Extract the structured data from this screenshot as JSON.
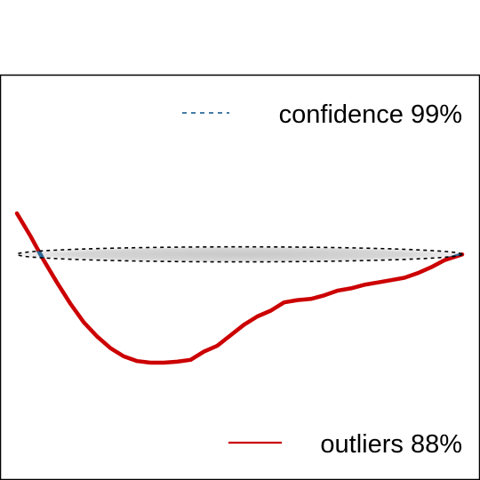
{
  "chart_data": {
    "type": "line",
    "title": "",
    "xlabel": "",
    "ylabel": "",
    "grid": false,
    "axes_visible": false,
    "x_range": [
      0,
      100
    ],
    "y_range": [
      -55,
      30
    ],
    "legend": [
      {
        "label": "confidence 99%",
        "style": "dashed",
        "color": "#2b6a9a",
        "placement": "top-right"
      },
      {
        "label": "outliers 88%",
        "style": "solid",
        "color": "#cc0000",
        "placement": "bottom-right"
      }
    ],
    "confidence_ellipse": {
      "center": [
        50,
        0
      ],
      "half_width": 50,
      "half_height": 3.2,
      "fill": "#cfcfcf",
      "outline_color": "#000000",
      "outline_style": "dashed"
    },
    "series": [
      {
        "label": "outliers 88%",
        "color_outside": "#cc0000",
        "color_inside": "#2b6a9a",
        "x": [
          0,
          3,
          6,
          9,
          12,
          15,
          18,
          21,
          24,
          27,
          30,
          33,
          36,
          39,
          42,
          45,
          48,
          51,
          54,
          57,
          60,
          63,
          66,
          69,
          72,
          75,
          78,
          81,
          84,
          87,
          90,
          93,
          96,
          100
        ],
        "y": [
          17.5,
          8,
          -2.5,
          -12,
          -21,
          -29,
          -35,
          -40,
          -43.5,
          -45.5,
          -46.2,
          -46.2,
          -45.8,
          -45,
          -41.5,
          -39,
          -34.5,
          -30,
          -26.5,
          -24,
          -20.5,
          -19.5,
          -19,
          -17.5,
          -15.5,
          -14.5,
          -13,
          -12,
          -11,
          -10,
          -8,
          -5.5,
          -2.5,
          0
        ]
      }
    ]
  }
}
